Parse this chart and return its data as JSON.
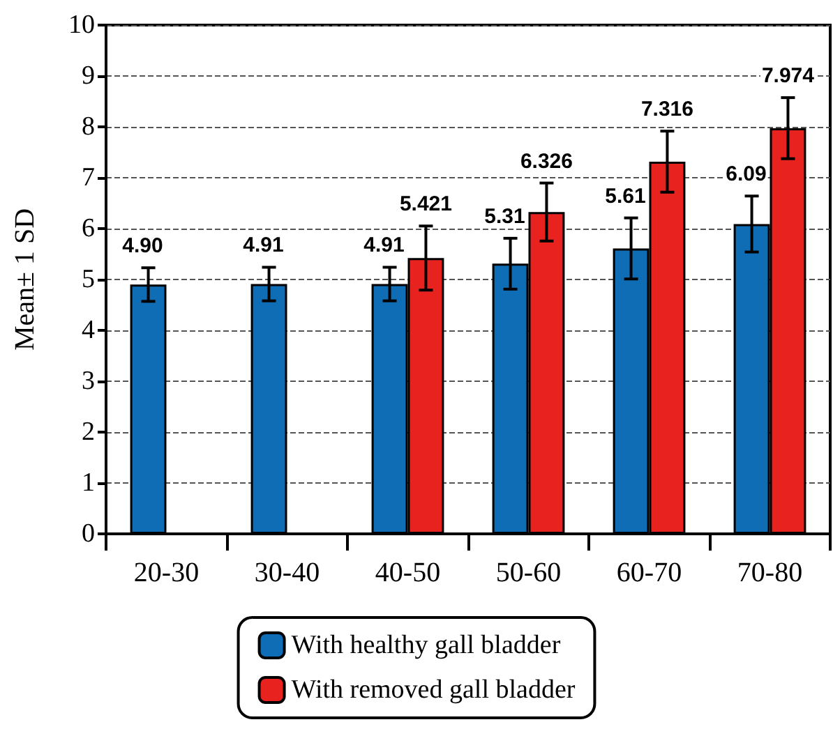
{
  "chart_data": {
    "type": "bar",
    "ylabel": "Mean± 1 SD",
    "categories": [
      "20-30",
      "30-40",
      "40-50",
      "50-60",
      "60-70",
      "70-80"
    ],
    "series": [
      {
        "name": "With healthy gall bladder",
        "color": "#0f6db5",
        "values": [
          4.9,
          4.91,
          4.91,
          5.31,
          5.61,
          6.09
        ],
        "errors": [
          0.33,
          0.33,
          0.33,
          0.5,
          0.6,
          0.55
        ],
        "value_labels": [
          "4.90",
          "4.91",
          "4.91",
          "5.31",
          "5.61",
          "6.09"
        ]
      },
      {
        "name": "With removed gall bladder",
        "color": "#e8231f",
        "values": [
          null,
          null,
          5.421,
          6.326,
          7.316,
          7.974
        ],
        "errors": [
          null,
          null,
          0.63,
          0.57,
          0.6,
          0.6
        ],
        "value_labels": [
          null,
          null,
          "5.421",
          "6.326",
          "7.316",
          "7.974"
        ]
      }
    ],
    "ylim": [
      0,
      10
    ],
    "yticks": [
      0,
      1,
      2,
      3,
      4,
      5,
      6,
      7,
      8,
      9,
      10
    ],
    "grid": "y",
    "legend": "bottom"
  }
}
